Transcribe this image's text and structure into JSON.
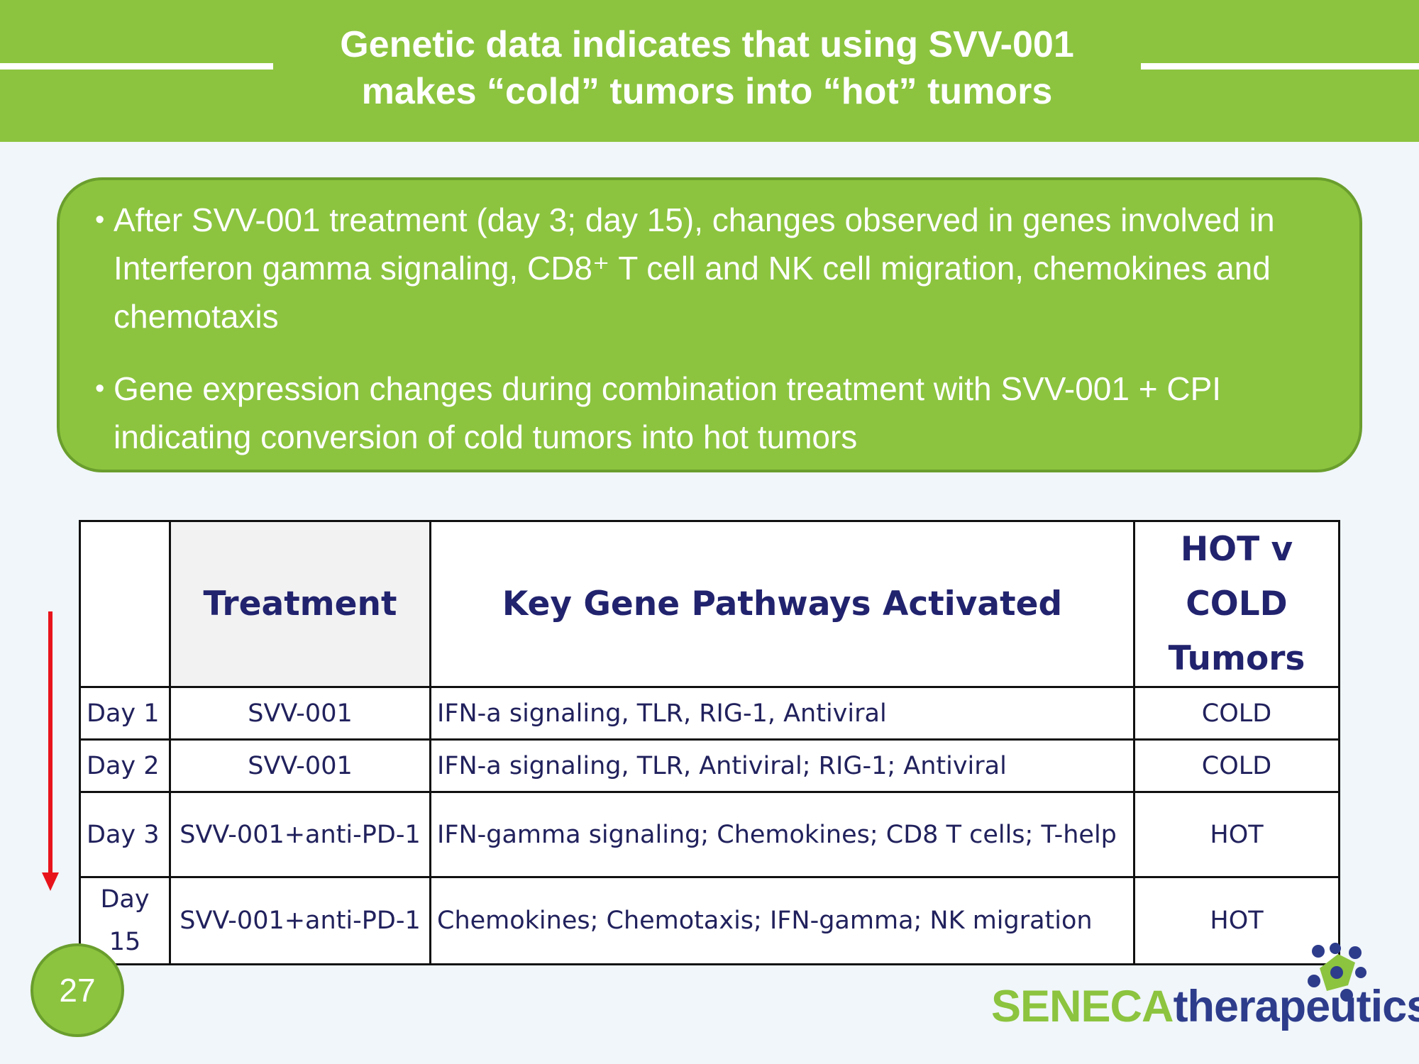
{
  "header": {
    "title_line1": "Genetic data  indicates that using SVV-001",
    "title_line2": "makes “cold” tumors into “hot” tumors"
  },
  "bullets": [
    {
      "marker": "•",
      "text": "After SVV-001 treatment (day 3; day 15), changes observed in genes involved in Interferon gamma signaling, CD8⁺ T cell and NK cell migration, chemokines and chemotaxis"
    },
    {
      "marker": "•",
      "text": "Gene expression changes during combination treatment with SVV-001 + CPI indicating conversion of cold tumors into hot tumors"
    }
  ],
  "table": {
    "headers": {
      "day": "",
      "treatment": "Treatment",
      "pathways": "Key Gene Pathways Activated",
      "hot_cold": "HOT v COLD Tumors"
    },
    "rows": [
      {
        "day": "Day 1",
        "treatment": "SVV-001",
        "pathways": "IFN-a signaling, TLR, RIG-1, Antiviral",
        "status": "COLD"
      },
      {
        "day": "Day 2",
        "treatment": "SVV-001",
        "pathways": "IFN-a signaling, TLR, Antiviral; RIG-1; Antiviral",
        "status": "COLD"
      },
      {
        "day": "Day 3",
        "treatment": "SVV-001+anti-PD-1",
        "pathways": "IFN-gamma signaling; Chemokines; CD8 T cells; T-help",
        "status": "HOT"
      },
      {
        "day": "Day 15",
        "treatment": "SVV-001+anti-PD-1",
        "pathways": "Chemokines; Chemotaxis; IFN-gamma; NK migration",
        "status": "HOT"
      }
    ]
  },
  "arrow": {
    "color": "#e8141b",
    "direction": "down"
  },
  "page_number": "27",
  "logo": {
    "text_part1": "SENECA",
    "text_part2": "therapeutics",
    "icon": "molecule-cluster-icon",
    "color_green": "#8cc43f",
    "color_blue": "#2e3c8c"
  },
  "colors": {
    "accent_green": "#8cc43f",
    "dark_green": "#6a9e2d",
    "table_text": "#21215d",
    "background": "#f0f6f9"
  }
}
